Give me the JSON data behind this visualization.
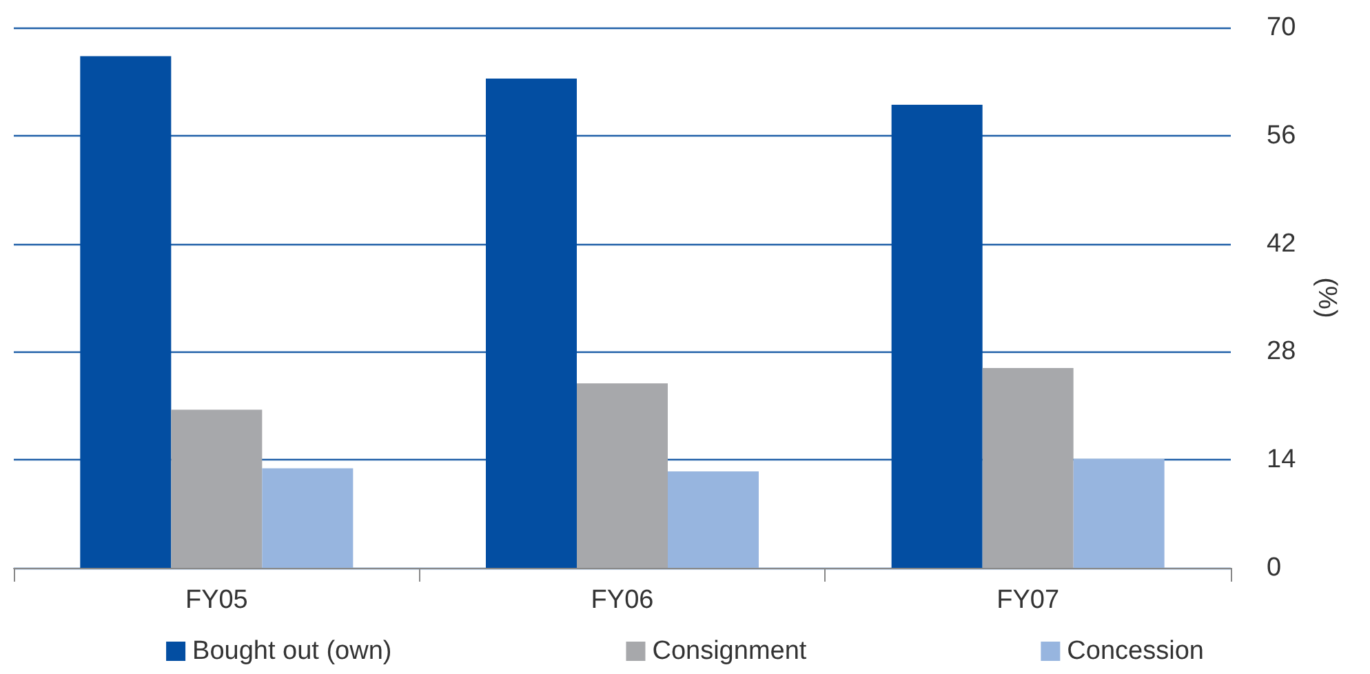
{
  "chart_data": {
    "type": "bar",
    "categories": [
      "FY05",
      "FY06",
      "FY07"
    ],
    "series": [
      {
        "name": "Bought out (own)",
        "color": "#034ea2",
        "values": [
          66.3,
          63.4,
          60
        ]
      },
      {
        "name": "Consignment",
        "color": "#a7a8ab",
        "values": [
          20.5,
          23.9,
          25.9
        ]
      },
      {
        "name": "Concession",
        "color": "#97b5df",
        "values": [
          12.9,
          12.5,
          14.1
        ]
      }
    ],
    "ylabel": "(%)",
    "ylim": [
      0,
      70
    ],
    "yticks": [
      0,
      14,
      28,
      42,
      56,
      70
    ],
    "grid": "y",
    "legend": "bottom"
  }
}
